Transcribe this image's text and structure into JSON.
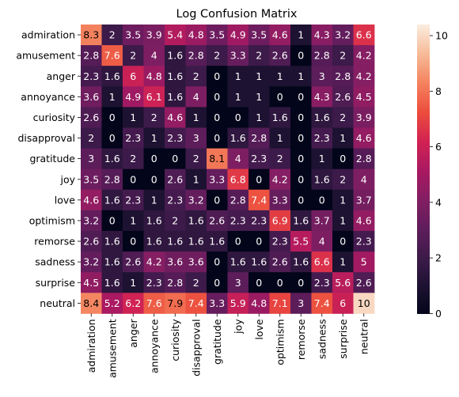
{
  "chart_data": {
    "type": "heatmap",
    "title": "Log Confusion Matrix",
    "labels": [
      "admiration",
      "amusement",
      "anger",
      "annoyance",
      "curiosity",
      "disapproval",
      "gratitude",
      "joy",
      "love",
      "optimism",
      "remorse",
      "sadness",
      "surprise",
      "neutral"
    ],
    "values": [
      [
        8.3,
        2,
        3.5,
        3.9,
        5.4,
        4.8,
        3.5,
        4.9,
        3.5,
        4.6,
        1,
        4.3,
        3.2,
        6.6
      ],
      [
        2.8,
        7.6,
        2,
        4,
        1.6,
        2.8,
        2,
        3.3,
        2,
        2.6,
        0,
        2.8,
        2,
        4.2
      ],
      [
        2.3,
        1.6,
        6,
        4.8,
        1.6,
        2,
        0,
        1,
        1,
        1,
        1,
        3,
        2.8,
        4.2
      ],
      [
        3.6,
        1,
        4.9,
        6.1,
        1.6,
        4,
        0,
        1,
        1,
        0,
        0,
        4.3,
        2.6,
        4.5
      ],
      [
        2.6,
        0,
        1,
        2,
        4.6,
        1,
        0,
        0,
        1,
        1.6,
        0,
        1.6,
        2,
        3.9
      ],
      [
        2,
        0,
        2.3,
        1,
        2.3,
        3,
        0,
        1.6,
        2.8,
        1,
        0,
        2.3,
        1,
        4.6
      ],
      [
        3,
        1.6,
        2,
        0,
        0,
        2,
        8.1,
        4,
        2.3,
        2,
        0,
        1,
        0,
        2.8
      ],
      [
        3.5,
        2.8,
        0,
        0,
        2.6,
        1,
        3.3,
        6.8,
        0,
        4.2,
        0,
        1.6,
        2,
        4
      ],
      [
        4.6,
        1.6,
        2.3,
        1,
        2.3,
        3.2,
        0,
        2.8,
        7.4,
        3.3,
        0,
        0,
        1,
        3.7
      ],
      [
        3.2,
        0,
        1,
        1.6,
        2,
        1.6,
        2.6,
        2.3,
        2.3,
        6.9,
        1.6,
        3.7,
        1,
        4.6
      ],
      [
        2.6,
        1.6,
        0,
        1.6,
        1.6,
        1.6,
        1.6,
        0,
        0,
        2.3,
        5.5,
        4,
        0,
        2.3
      ],
      [
        3.2,
        1.6,
        2.6,
        4.2,
        3.6,
        3.6,
        0,
        1.6,
        1.6,
        2.6,
        1.6,
        6.6,
        1,
        5
      ],
      [
        4.5,
        1.6,
        1,
        2.3,
        2.8,
        2,
        0,
        3,
        0,
        0,
        0,
        2.3,
        5.6,
        2.6
      ],
      [
        8.4,
        5.2,
        6.2,
        7.6,
        7.9,
        7.4,
        3.3,
        5.9,
        4.8,
        7.1,
        3,
        7.4,
        6,
        10
      ]
    ],
    "color_range": [
      0,
      10.4
    ],
    "colorbar_ticks": [
      0,
      2,
      4,
      6,
      8,
      10
    ],
    "colormap": "rocket",
    "annotations": true
  }
}
